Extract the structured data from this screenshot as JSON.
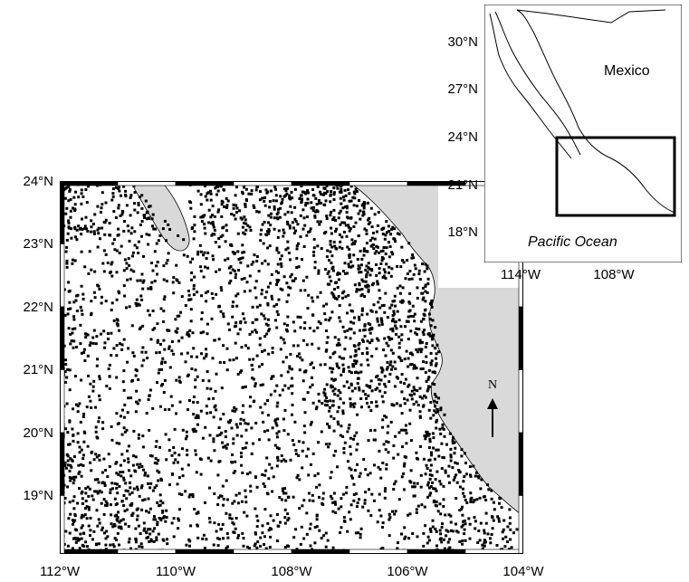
{
  "main_map": {
    "lat_labels": [
      "24°N",
      "23°N",
      "22°N",
      "21°N",
      "20°N",
      "19°N"
    ],
    "lon_labels": [
      "112°W",
      "110°W",
      "108°W",
      "106°W",
      "104°W"
    ],
    "north_label": "N",
    "colors": {
      "land": "#d9d9d9",
      "water": "#ffffff",
      "points": "#000000"
    }
  },
  "inset_map": {
    "lat_labels": [
      "30°N",
      "27°N",
      "24°N",
      "21°N",
      "18°N"
    ],
    "lon_labels": [
      "114°W",
      "108°W"
    ],
    "country_label": "Mexico",
    "ocean_label": "Pacific Ocean"
  }
}
